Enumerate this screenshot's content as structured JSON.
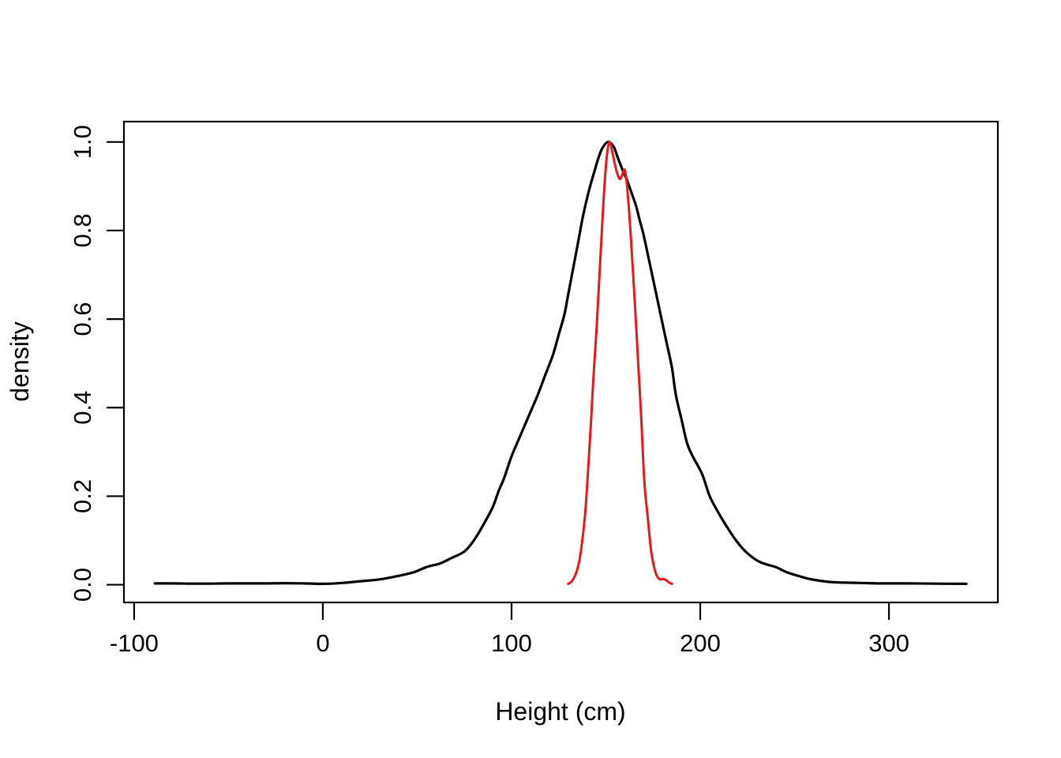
{
  "figure": {
    "background": "#ffffff",
    "foreground": "#000000"
  },
  "chart_data": {
    "type": "line",
    "title": "",
    "xlabel": "Height (cm)",
    "ylabel": "density",
    "grid": false,
    "legend": "none",
    "x_axis": {
      "range": [
        -105.4,
        357.7
      ],
      "ticks": [
        -100,
        0,
        100,
        200,
        300
      ],
      "tick_labels": [
        "-100",
        "0",
        "100",
        "200",
        "300"
      ]
    },
    "y_axis": {
      "range": [
        -0.04,
        1.046
      ],
      "ticks": [
        0.0,
        0.2,
        0.4,
        0.6,
        0.8,
        1.0
      ],
      "tick_labels": [
        "0.0",
        "0.2",
        "0.4",
        "0.6",
        "0.8",
        "1.0"
      ]
    },
    "series": [
      {
        "name": "black_density_curve",
        "color": "#000000",
        "line_width": 3.2,
        "points": [
          [
            -89,
            0.003
          ],
          [
            -80,
            0.003
          ],
          [
            -70,
            0.0025
          ],
          [
            -60,
            0.0025
          ],
          [
            -50,
            0.003
          ],
          [
            -40,
            0.003
          ],
          [
            -30,
            0.003
          ],
          [
            -20,
            0.0035
          ],
          [
            -10,
            0.003
          ],
          [
            0,
            0.002
          ],
          [
            10,
            0.004
          ],
          [
            20,
            0.008
          ],
          [
            30,
            0.012
          ],
          [
            40,
            0.02
          ],
          [
            48,
            0.028
          ],
          [
            55,
            0.04
          ],
          [
            62,
            0.048
          ],
          [
            68,
            0.06
          ],
          [
            75,
            0.075
          ],
          [
            80,
            0.1
          ],
          [
            85,
            0.135
          ],
          [
            90,
            0.175
          ],
          [
            93,
            0.21
          ],
          [
            96,
            0.24
          ],
          [
            100,
            0.29
          ],
          [
            105,
            0.34
          ],
          [
            110,
            0.39
          ],
          [
            114,
            0.43
          ],
          [
            118,
            0.475
          ],
          [
            122,
            0.52
          ],
          [
            125,
            0.565
          ],
          [
            128,
            0.61
          ],
          [
            130,
            0.655
          ],
          [
            132,
            0.7
          ],
          [
            134,
            0.745
          ],
          [
            136,
            0.79
          ],
          [
            138,
            0.835
          ],
          [
            141,
            0.89
          ],
          [
            144,
            0.935
          ],
          [
            146,
            0.963
          ],
          [
            148,
            0.985
          ],
          [
            151,
            1.0
          ],
          [
            154,
            0.99
          ],
          [
            156,
            0.968
          ],
          [
            159,
            0.935
          ],
          [
            161,
            0.916
          ],
          [
            164,
            0.88
          ],
          [
            166,
            0.855
          ],
          [
            168,
            0.822
          ],
          [
            170,
            0.79
          ],
          [
            173,
            0.73
          ],
          [
            176,
            0.67
          ],
          [
            179,
            0.61
          ],
          [
            182,
            0.55
          ],
          [
            185,
            0.49
          ],
          [
            187,
            0.43
          ],
          [
            190,
            0.375
          ],
          [
            193,
            0.32
          ],
          [
            196,
            0.29
          ],
          [
            201,
            0.25
          ],
          [
            205,
            0.2
          ],
          [
            210,
            0.16
          ],
          [
            215,
            0.125
          ],
          [
            219,
            0.1
          ],
          [
            224,
            0.075
          ],
          [
            230,
            0.055
          ],
          [
            235,
            0.046
          ],
          [
            240,
            0.04
          ],
          [
            246,
            0.028
          ],
          [
            252,
            0.02
          ],
          [
            258,
            0.013
          ],
          [
            267,
            0.007
          ],
          [
            275,
            0.005
          ],
          [
            285,
            0.004
          ],
          [
            295,
            0.003
          ],
          [
            310,
            0.003
          ],
          [
            325,
            0.0025
          ],
          [
            341,
            0.002
          ]
        ]
      },
      {
        "name": "red_density_curve",
        "color": "#e8191c",
        "line_width": 3.0,
        "points": [
          [
            130,
            0.002
          ],
          [
            131.5,
            0.006
          ],
          [
            133,
            0.015
          ],
          [
            134.5,
            0.03
          ],
          [
            136,
            0.055
          ],
          [
            137.5,
            0.1
          ],
          [
            139,
            0.16
          ],
          [
            140,
            0.22
          ],
          [
            141,
            0.29
          ],
          [
            142,
            0.36
          ],
          [
            143,
            0.44
          ],
          [
            144,
            0.51
          ],
          [
            145,
            0.575
          ],
          [
            146,
            0.65
          ],
          [
            147,
            0.73
          ],
          [
            148,
            0.81
          ],
          [
            149,
            0.885
          ],
          [
            150,
            0.945
          ],
          [
            151,
            0.985
          ],
          [
            152,
            1.0
          ],
          [
            153,
            0.985
          ],
          [
            154,
            0.965
          ],
          [
            155,
            0.945
          ],
          [
            156,
            0.929
          ],
          [
            157.5,
            0.916
          ],
          [
            159,
            0.93
          ],
          [
            160,
            0.937
          ],
          [
            161,
            0.91
          ],
          [
            162,
            0.86
          ],
          [
            163,
            0.8
          ],
          [
            164,
            0.73
          ],
          [
            165,
            0.66
          ],
          [
            166,
            0.585
          ],
          [
            167,
            0.51
          ],
          [
            168,
            0.435
          ],
          [
            169,
            0.355
          ],
          [
            170,
            0.26
          ],
          [
            171,
            0.2
          ],
          [
            172,
            0.16
          ],
          [
            173,
            0.115
          ],
          [
            174,
            0.075
          ],
          [
            175,
            0.05
          ],
          [
            176,
            0.032
          ],
          [
            177,
            0.02
          ],
          [
            178,
            0.014
          ],
          [
            179,
            0.012
          ],
          [
            180.5,
            0.013
          ],
          [
            182,
            0.01
          ],
          [
            183.5,
            0.005
          ],
          [
            185,
            0.002
          ]
        ]
      }
    ]
  }
}
